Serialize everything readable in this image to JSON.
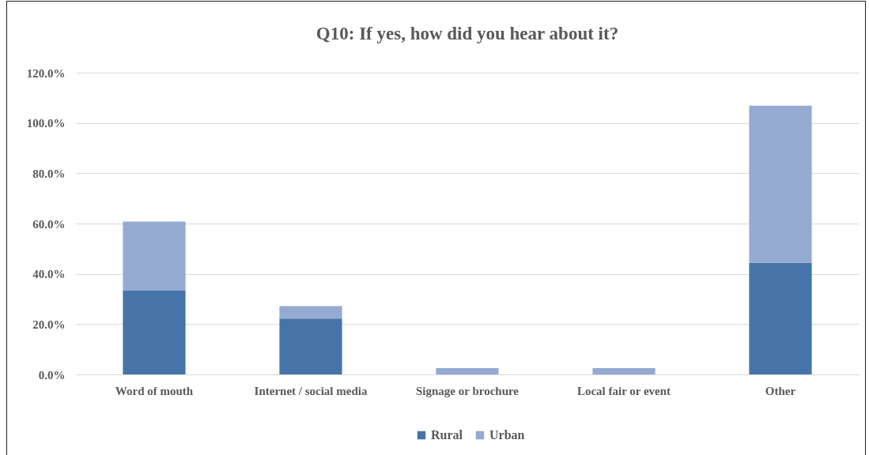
{
  "chart_data": {
    "type": "bar",
    "title": "Q10: If yes, how did you hear about it?",
    "categories": [
      "Word of mouth",
      "Internet / social media",
      "Signage or brochure",
      "Local fair or event",
      "Other"
    ],
    "series": [
      {
        "name": "Rural",
        "color": "#4674a8",
        "values": [
          33.3,
          22.2,
          0,
          0,
          44.4
        ]
      },
      {
        "name": "Urban",
        "color": "#95aad1",
        "values": [
          27.5,
          5.0,
          2.5,
          2.5,
          62.5
        ]
      }
    ],
    "stacked": true,
    "ylim": [
      0,
      120
    ],
    "yticks": [
      {
        "value": 0,
        "label": "0.0%"
      },
      {
        "value": 20,
        "label": "20.0%"
      },
      {
        "value": 40,
        "label": "40.0%"
      },
      {
        "value": 60,
        "label": "60.0%"
      },
      {
        "value": 80,
        "label": "80.0%"
      },
      {
        "value": 100,
        "label": "100.0%"
      },
      {
        "value": 120,
        "label": "120.0%"
      }
    ],
    "grid": "y",
    "legend": "bottom"
  }
}
